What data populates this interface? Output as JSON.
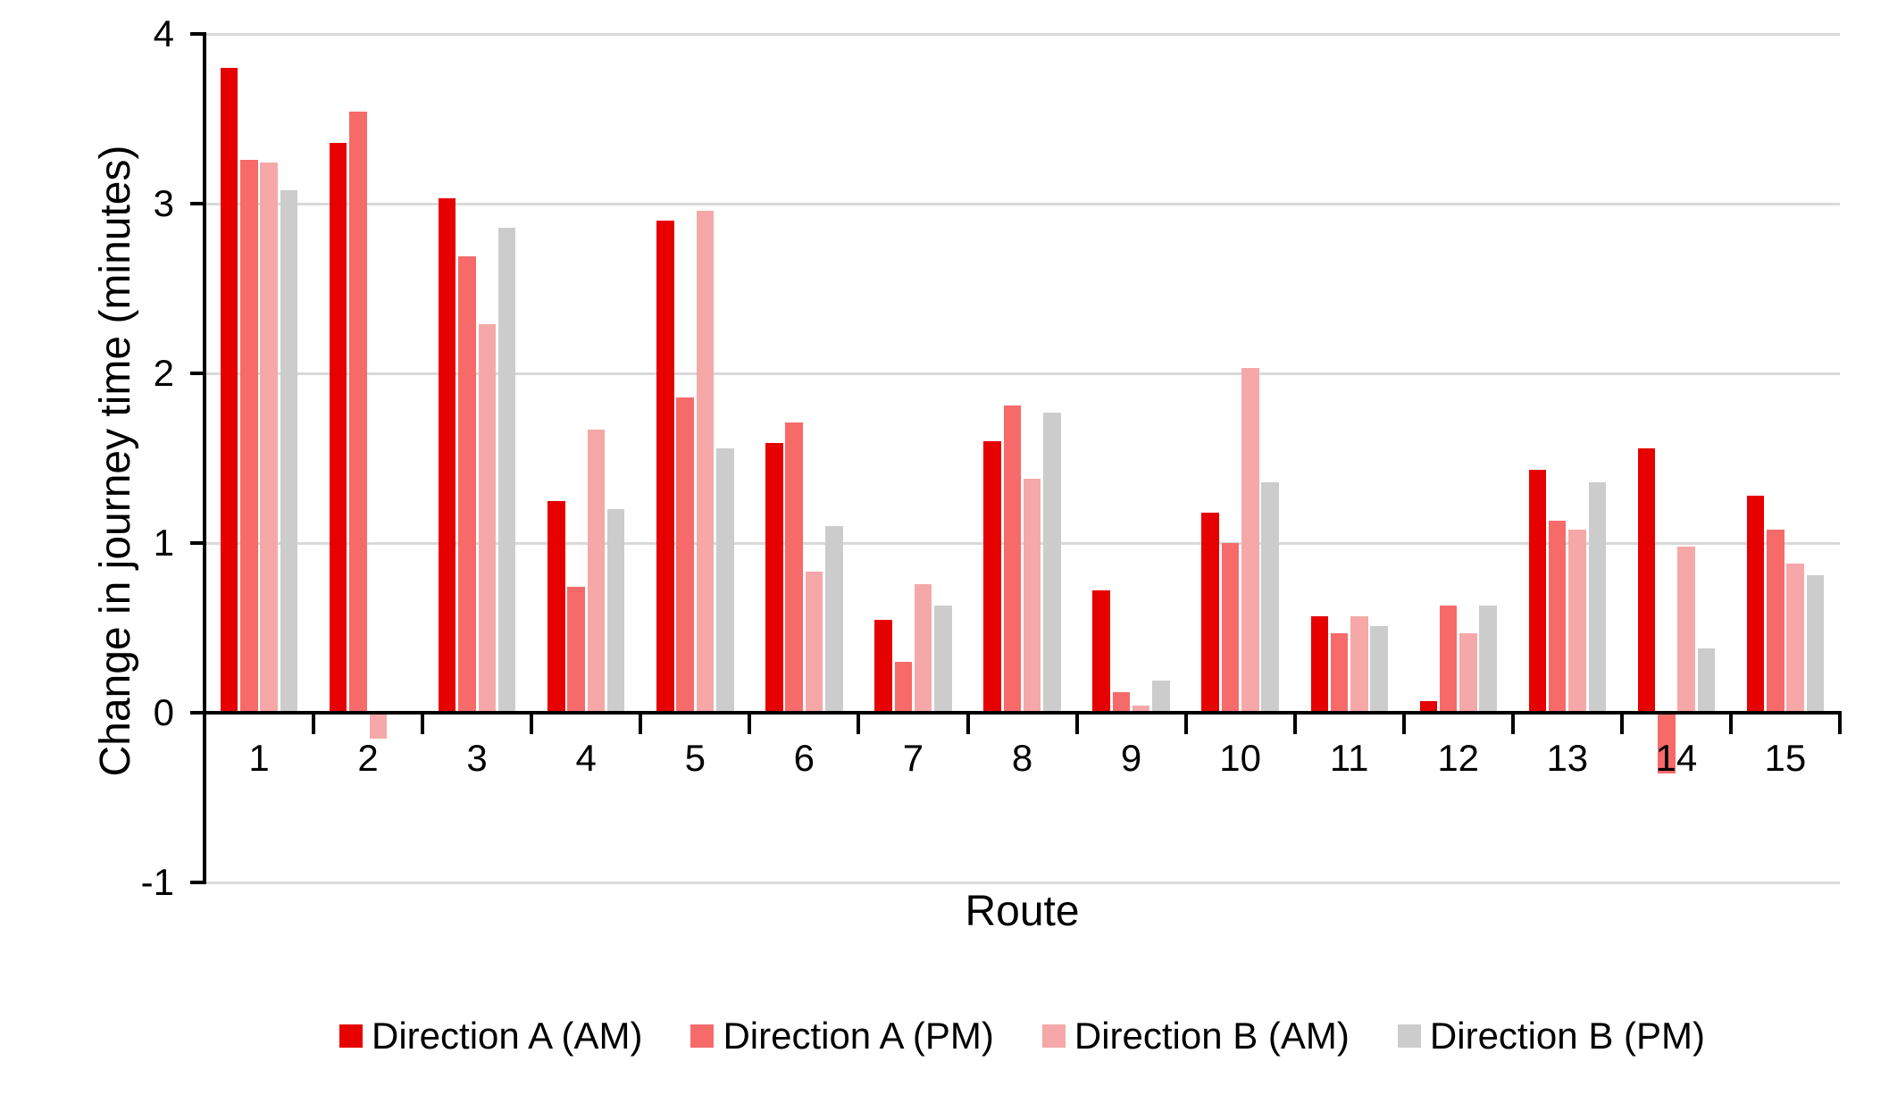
{
  "chart_data": {
    "type": "bar",
    "title": "",
    "xlabel": "Route",
    "ylabel": "Change in journey time (minutes)",
    "categories": [
      "1",
      "2",
      "3",
      "4",
      "5",
      "6",
      "7",
      "8",
      "9",
      "10",
      "11",
      "12",
      "13",
      "14",
      "15"
    ],
    "series": [
      {
        "name": "Direction A (AM)",
        "color": "#E60000",
        "values": [
          3.8,
          3.36,
          3.03,
          1.25,
          2.9,
          1.59,
          0.55,
          1.6,
          0.72,
          1.18,
          0.57,
          0.07,
          1.43,
          1.56,
          1.28
        ]
      },
      {
        "name": "Direction A (PM)",
        "color": "#F76A6A",
        "values": [
          3.26,
          3.54,
          2.69,
          0.74,
          1.86,
          1.71,
          0.3,
          1.81,
          0.12,
          1.0,
          0.47,
          0.63,
          1.13,
          -0.36,
          1.08
        ]
      },
      {
        "name": "Direction B (AM)",
        "color": "#F6A8A8",
        "values": [
          3.24,
          -0.15,
          2.29,
          1.67,
          2.96,
          0.83,
          0.76,
          1.38,
          0.04,
          2.03,
          0.57,
          0.47,
          1.08,
          0.98,
          0.88
        ]
      },
      {
        "name": "Direction B (PM)",
        "color": "#CCCCCC",
        "values": [
          3.08,
          null,
          2.86,
          1.2,
          1.56,
          1.1,
          0.63,
          1.77,
          0.19,
          1.36,
          0.51,
          0.63,
          1.36,
          0.38,
          0.81
        ]
      }
    ],
    "ylim": [
      -1,
      4
    ],
    "yticks": [
      4,
      3,
      2,
      1,
      0,
      -1
    ],
    "grid": true,
    "gridline_color": "#D9D9D9",
    "axis_color": "#000000",
    "legend_position": "bottom"
  }
}
